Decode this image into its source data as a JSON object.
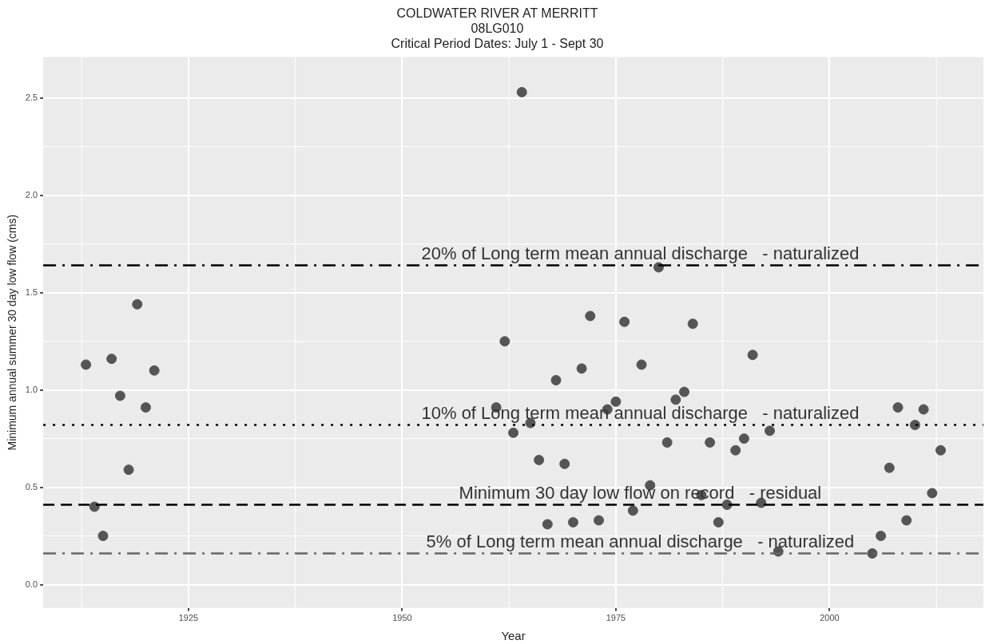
{
  "chart_data": {
    "type": "scatter",
    "title": "COLDWATER RIVER AT MERRITT",
    "subtitle": "08LG010\nCritical Period Dates: July 1 - Sept 30",
    "xlabel": "Year",
    "ylabel": "Minimum annual summer 30 day low flow (cms)",
    "x": [
      1913,
      1914,
      1915,
      1916,
      1917,
      1918,
      1919,
      1920,
      1921,
      1961,
      1962,
      1963,
      1964,
      1965,
      1966,
      1967,
      1968,
      1969,
      1970,
      1971,
      1972,
      1973,
      1974,
      1975,
      1976,
      1977,
      1978,
      1979,
      1980,
      1981,
      1982,
      1983,
      1984,
      1985,
      1986,
      1987,
      1988,
      1989,
      1990,
      1991,
      1992,
      1993,
      1994,
      2005,
      2006,
      2007,
      2008,
      2009,
      2010,
      2011,
      2012,
      2013
    ],
    "values": [
      1.13,
      0.4,
      0.25,
      1.16,
      0.97,
      0.59,
      1.44,
      0.91,
      1.1,
      0.91,
      1.25,
      0.78,
      2.53,
      0.83,
      0.64,
      0.31,
      1.05,
      0.62,
      0.32,
      1.11,
      1.38,
      0.33,
      0.9,
      0.94,
      1.35,
      0.38,
      1.13,
      0.51,
      1.63,
      0.73,
      0.95,
      0.99,
      1.34,
      0.46,
      0.73,
      0.32,
      0.41,
      0.69,
      0.75,
      1.18,
      0.42,
      0.79,
      0.17,
      0.16,
      0.25,
      0.6,
      0.91,
      0.33,
      0.82,
      0.9,
      0.47,
      0.69
    ],
    "color": "#555555",
    "marker": "circle",
    "xlim": [
      1908,
      2018
    ],
    "xticks": [
      1925,
      1950,
      1975,
      2000
    ],
    "ylim": [
      -0.12,
      2.71
    ],
    "yticks": [
      {
        "value": 0,
        "label": "0.0"
      },
      0.5,
      {
        "value": 1,
        "label": "1.0"
      },
      1.5,
      {
        "value": 2,
        "label": "2.0"
      },
      2.5
    ],
    "grid": true,
    "legend": false,
    "ref_lines": [
      {
        "axis": "y",
        "value": 1.64,
        "label": "20% of Long term mean annual discharge   - naturalized",
        "color": "#000000",
        "line_style": "dashdot"
      },
      {
        "axis": "y",
        "value": 0.82,
        "label": "10% of Long term mean annual discharge   - naturalized",
        "color": "#000000",
        "line_style": "dotted"
      },
      {
        "axis": "y",
        "value": 0.41,
        "label": "Minimum 30 day low flow on record   - residual",
        "color": "#000000",
        "line_style": "dashed"
      },
      {
        "axis": "y",
        "value": 0.16,
        "label": "5% of Long term mean annual discharge   - naturalized",
        "color": "#666666",
        "line_style": "dashdot"
      }
    ]
  }
}
